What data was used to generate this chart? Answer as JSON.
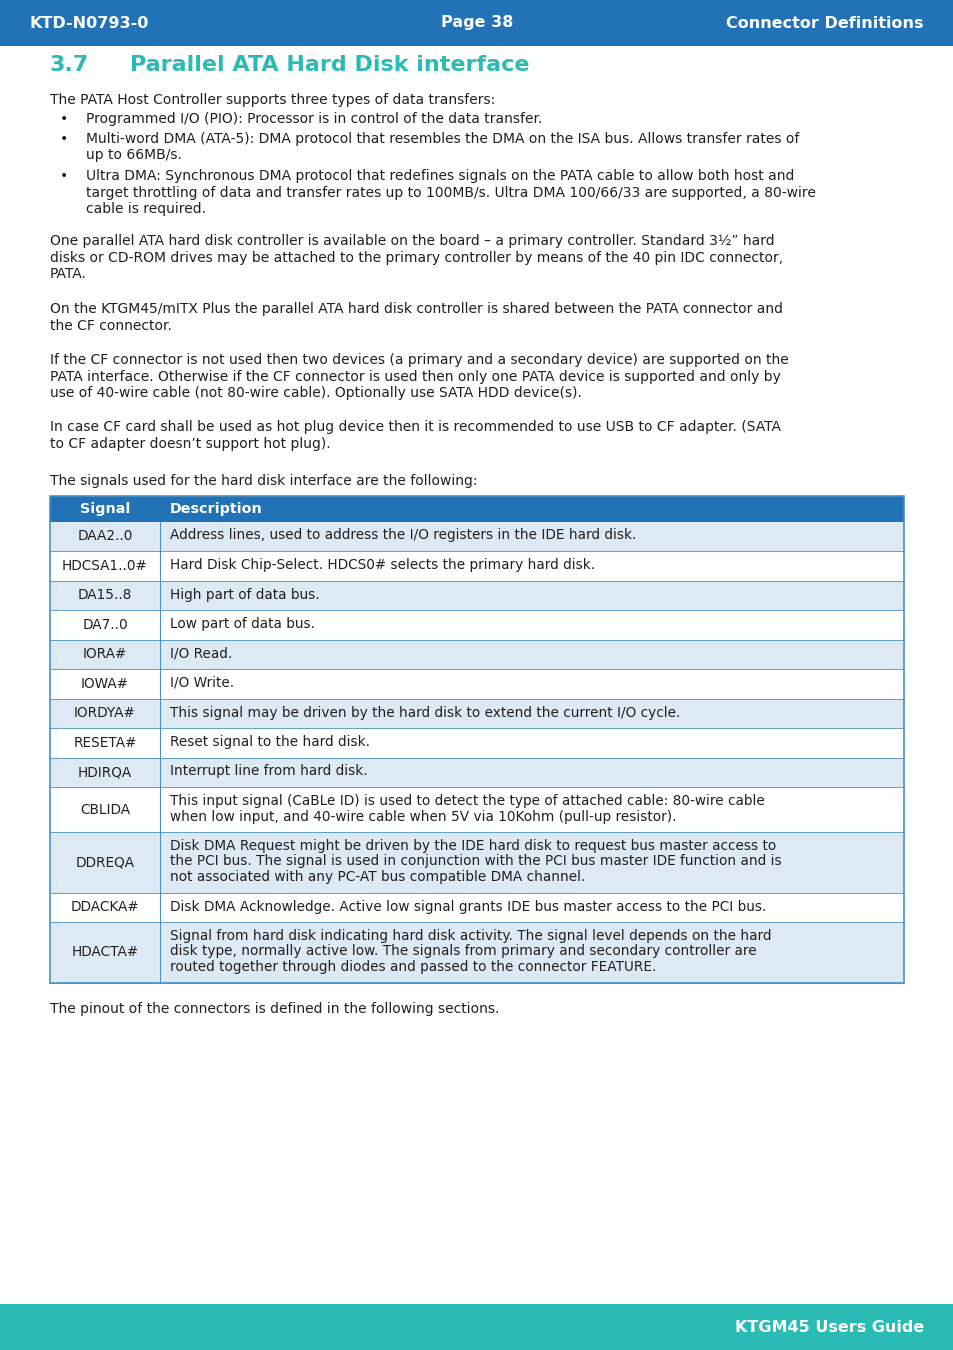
{
  "header_bg_color": "#2272B8",
  "header_text_color": "#FFFFFF",
  "header_left": "KTD-N0793-0",
  "header_center": "Page 38",
  "header_right": "Connector Definitions",
  "footer_bg_color": "#2ABCB4",
  "footer_text": "KTGM45 Users Guide",
  "section_number": "3.7",
  "section_title": "Parallel ATA Hard Disk interface",
  "section_color": "#2ABCB4",
  "body_text_color": "#231F20",
  "body_font_size": 10.0,
  "intro_text": "The PATA Host Controller supports three types of data transfers:",
  "bullets": [
    "Programmed I/O (PIO): Processor is in control of the data transfer.",
    "Multi-word DMA (ATA-5): DMA protocol that resembles the DMA on the ISA bus. Allows transfer rates of\nup to 66MB/s.",
    "Ultra DMA: Synchronous DMA protocol that redefines signals on the PATA cable to allow both host and\ntarget throttling of data and transfer rates up to 100MB/s. Ultra DMA 100/66/33 are supported, a 80-wire\ncable is required."
  ],
  "paragraph1": "One parallel ATA hard disk controller is available on the board – a primary controller. Standard 3½” hard\ndisks or CD-ROM drives may be attached to the primary controller by means of the 40 pin IDC connector,\nPATA.",
  "paragraph2": "On the KTGM45/mITX Plus the parallel ATA hard disk controller is shared between the PATA connector and\nthe CF connector.",
  "paragraph3": "If the CF connector is not used then two devices (a primary and a secondary device) are supported on the\nPATA interface. Otherwise if the CF connector is used then only one PATA device is supported and only by\nuse of 40-wire cable (not 80-wire cable). Optionally use SATA HDD device(s).",
  "paragraph4": "In case CF card shall be used as hot plug device then it is recommended to use USB to CF adapter. (SATA\nto CF adapter doesn’t support hot plug).",
  "table_intro": "The signals used for the hard disk interface are the following:",
  "table_header_bg": "#2272B8",
  "table_header_text_color": "#FFFFFF",
  "table_row_even_color": "#DDEAF5",
  "table_row_odd_color": "#FFFFFF",
  "table_border_color": "#4A90C4",
  "table_columns": [
    "Signal",
    "Description"
  ],
  "table_data": [
    [
      "DAA2..0",
      "Address lines, used to address the I/O registers in the IDE hard disk.",
      1
    ],
    [
      "HDCSA1..0#",
      "Hard Disk Chip-Select. HDCS0# selects the primary hard disk.",
      1
    ],
    [
      "DA15..8",
      "High part of data bus.",
      1
    ],
    [
      "DA7..0",
      "Low part of data bus.",
      1
    ],
    [
      "IORA#",
      "I/O Read.",
      1
    ],
    [
      "IOWA#",
      "I/O Write.",
      1
    ],
    [
      "IORDYA#",
      "This signal may be driven by the hard disk to extend the current I/O cycle.",
      1
    ],
    [
      "RESETA#",
      "Reset signal to the hard disk.",
      1
    ],
    [
      "HDIRQA",
      "Interrupt line from hard disk.",
      1
    ],
    [
      "CBLIDA",
      "This input signal (CaBLe ID) is used to detect the type of attached cable: 80-wire cable\nwhen low input, and 40-wire cable when 5V via 10Kohm (pull-up resistor).",
      2
    ],
    [
      "DDREQA",
      "Disk DMA Request might be driven by the IDE hard disk to request bus master access to\nthe PCI bus. The signal is used in conjunction with the PCI bus master IDE function and is\nnot associated with any PC-AT bus compatible DMA channel.",
      3
    ],
    [
      "DDACKA#",
      "Disk DMA Acknowledge. Active low signal grants IDE bus master access to the PCI bus.",
      1
    ],
    [
      "HDACTA#",
      "Signal from hard disk indicating hard disk activity. The signal level depends on the hard\ndisk type, normally active low. The signals from primary and secondary controller are\nrouted together through diodes and passed to the connector FEATURE.",
      3
    ]
  ],
  "footer_note": "The pinout of the connectors is defined in the following sections."
}
